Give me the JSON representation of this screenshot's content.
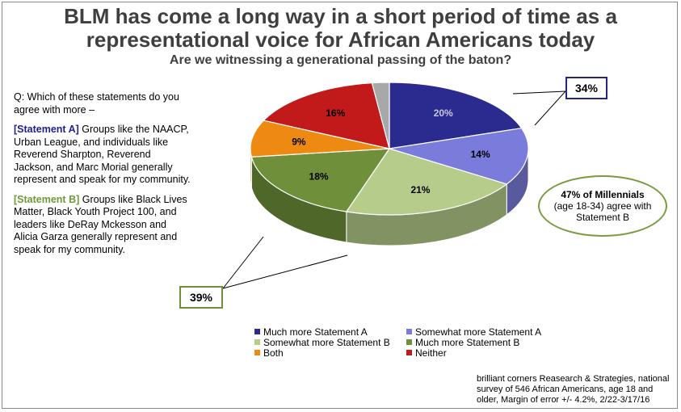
{
  "title_line1": "BLM has come a long way in a short period of time as a",
  "title_line2": "representational voice for African Americans today",
  "subtitle": "Are we witnessing a generational passing of the baton?",
  "question": {
    "intro": "Q:  Which of these statements do you agree with more –",
    "statement_a_tag": "[Statement A]",
    "statement_a_text": " Groups like the NAACP, Urban League, and individuals like Reverend Sharpton, Reverend Jackson, and Marc Morial generally represent and speak for my community.",
    "statement_b_tag": "[Statement B]",
    "statement_b_text": " Groups like Black Lives Matter, Black Youth Project 100, and leaders like DeRay Mckesson and Alicia Garza generally represent and speak for my community."
  },
  "callouts": {
    "statement_a_total": "34%",
    "statement_b_total": "39%"
  },
  "millennials_note": {
    "bold": "47% of Millennials",
    "rest": "(age 18-34) agree with Statement B"
  },
  "source": "brilliant corners Reasearch & Strategies, national survey of 546 African Americans, age 18 and older, Margin of error +/- 4.2%, 2/22-3/17/16",
  "chart_data": {
    "type": "pie",
    "style": "3d",
    "slices": [
      {
        "name": "Much more Statement A",
        "value": 20,
        "label": "20%",
        "color": "#2a2a8f",
        "label_color": "#c8c8e0"
      },
      {
        "name": "Somewhat more Statement A",
        "value": 14,
        "label": "14%",
        "color": "#7b7bdc",
        "label_color": "#000000"
      },
      {
        "name": "Somewhat more Statement B",
        "value": 21,
        "label": "21%",
        "color": "#b5cc8a",
        "label_color": "#000000"
      },
      {
        "name": "Much more Statement B",
        "value": 18,
        "label": "18%",
        "color": "#6f8f3a",
        "label_color": "#000000"
      },
      {
        "name": "Both",
        "value": 9,
        "label": "9%",
        "color": "#ee8a12",
        "label_color": "#000000"
      },
      {
        "name": "Neither",
        "value": 16,
        "label": "16%",
        "color": "#c21a1a",
        "label_color": "#000000"
      },
      {
        "name": "",
        "value": 2,
        "label": "",
        "color": "#a8a8a8",
        "label_color": "#000000"
      }
    ],
    "legend": [
      {
        "label": "Much more Statement A",
        "color": "#2a2a8f"
      },
      {
        "label": "Somewhat more Statement A",
        "color": "#7b7bdc"
      },
      {
        "label": "Somewhat more Statement B",
        "color": "#b5cc8a"
      },
      {
        "label": "Much more Statement B",
        "color": "#6f8f3a"
      },
      {
        "label": "Both",
        "color": "#ee8a12"
      },
      {
        "label": "Neither",
        "color": "#c21a1a"
      }
    ],
    "legend_position": "bottom"
  }
}
